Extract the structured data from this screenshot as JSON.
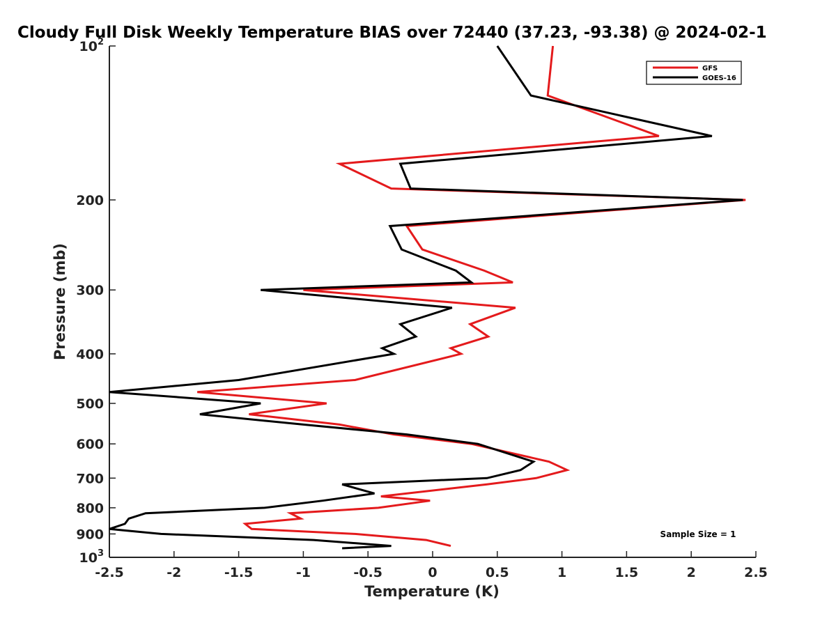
{
  "chart_data": {
    "type": "line",
    "title": "Cloudy Full Disk Weekly Temperature BIAS over 72440 (37.23, -93.38) @ 2024-02-1",
    "xlabel": "Temperature (K)",
    "ylabel": "Pressure (mb)",
    "xlim": [
      -2.5,
      2.5
    ],
    "ylim": [
      100,
      1000
    ],
    "y_scale": "log",
    "y_reversed": true,
    "grid": false,
    "legend_position": "top-right",
    "x_ticks": [
      "-2.5",
      "-2",
      "-1.5",
      "-1",
      "-0.5",
      "0",
      "0.5",
      "1",
      "1.5",
      "2",
      "2.5"
    ],
    "y_ticks": [
      {
        "value": 100,
        "base": "10",
        "exp": "2"
      },
      {
        "value": 200,
        "label": "200"
      },
      {
        "value": 300,
        "label": "300"
      },
      {
        "value": 400,
        "label": "400"
      },
      {
        "value": 500,
        "label": "500"
      },
      {
        "value": 600,
        "label": "600"
      },
      {
        "value": 700,
        "label": "700"
      },
      {
        "value": 800,
        "label": "800"
      },
      {
        "value": 900,
        "label": "900"
      },
      {
        "value": 1000,
        "base": "10",
        "exp": "3"
      }
    ],
    "annotation": "Sample Size = 1",
    "series": [
      {
        "name": "GFS",
        "color": "#e41a1c",
        "points": [
          [
            0.93,
            100
          ],
          [
            0.89,
            125
          ],
          [
            1.75,
            150
          ],
          [
            -0.72,
            170
          ],
          [
            -0.32,
            190
          ],
          [
            2.42,
            200
          ],
          [
            -0.2,
            225
          ],
          [
            -0.08,
            250
          ],
          [
            0.4,
            275
          ],
          [
            0.62,
            290
          ],
          [
            -1.0,
            300
          ],
          [
            0.64,
            325
          ],
          [
            0.29,
            350
          ],
          [
            0.43,
            370
          ],
          [
            0.14,
            390
          ],
          [
            0.22,
            400
          ],
          [
            -0.6,
            450
          ],
          [
            -1.82,
            475
          ],
          [
            -0.82,
            500
          ],
          [
            -1.42,
            525
          ],
          [
            -0.72,
            550
          ],
          [
            -0.3,
            575
          ],
          [
            0.3,
            600
          ],
          [
            0.9,
            650
          ],
          [
            1.04,
            675
          ],
          [
            0.8,
            700
          ],
          [
            0.42,
            720
          ],
          [
            -0.4,
            760
          ],
          [
            -0.02,
            775
          ],
          [
            -0.42,
            800
          ],
          [
            -1.1,
            820
          ],
          [
            -1.02,
            840
          ],
          [
            -1.45,
            860
          ],
          [
            -1.4,
            880
          ],
          [
            -0.6,
            900
          ],
          [
            -0.05,
            925
          ],
          [
            0.14,
            950
          ]
        ]
      },
      {
        "name": "GOES-16",
        "color": "#000000",
        "points": [
          [
            0.5,
            100
          ],
          [
            0.76,
            125
          ],
          [
            2.16,
            150
          ],
          [
            -0.25,
            170
          ],
          [
            -0.17,
            190
          ],
          [
            2.4,
            200
          ],
          [
            -0.33,
            225
          ],
          [
            -0.24,
            250
          ],
          [
            0.18,
            275
          ],
          [
            0.3,
            290
          ],
          [
            -1.33,
            300
          ],
          [
            0.15,
            325
          ],
          [
            -0.25,
            350
          ],
          [
            -0.13,
            370
          ],
          [
            -0.39,
            390
          ],
          [
            -0.3,
            400
          ],
          [
            -1.5,
            450
          ],
          [
            -2.5,
            475
          ],
          [
            -1.33,
            500
          ],
          [
            -1.8,
            525
          ],
          [
            -1.0,
            550
          ],
          [
            -0.2,
            575
          ],
          [
            0.35,
            600
          ],
          [
            0.78,
            650
          ],
          [
            0.68,
            675
          ],
          [
            0.42,
            700
          ],
          [
            -0.7,
            720
          ],
          [
            -0.45,
            750
          ],
          [
            -0.85,
            775
          ],
          [
            -1.3,
            800
          ],
          [
            -2.22,
            820
          ],
          [
            -2.35,
            840
          ],
          [
            -2.38,
            860
          ],
          [
            -2.5,
            880
          ],
          [
            -2.1,
            900
          ],
          [
            -0.92,
            925
          ],
          [
            -0.32,
            950
          ],
          [
            -0.7,
            960
          ]
        ]
      }
    ]
  }
}
